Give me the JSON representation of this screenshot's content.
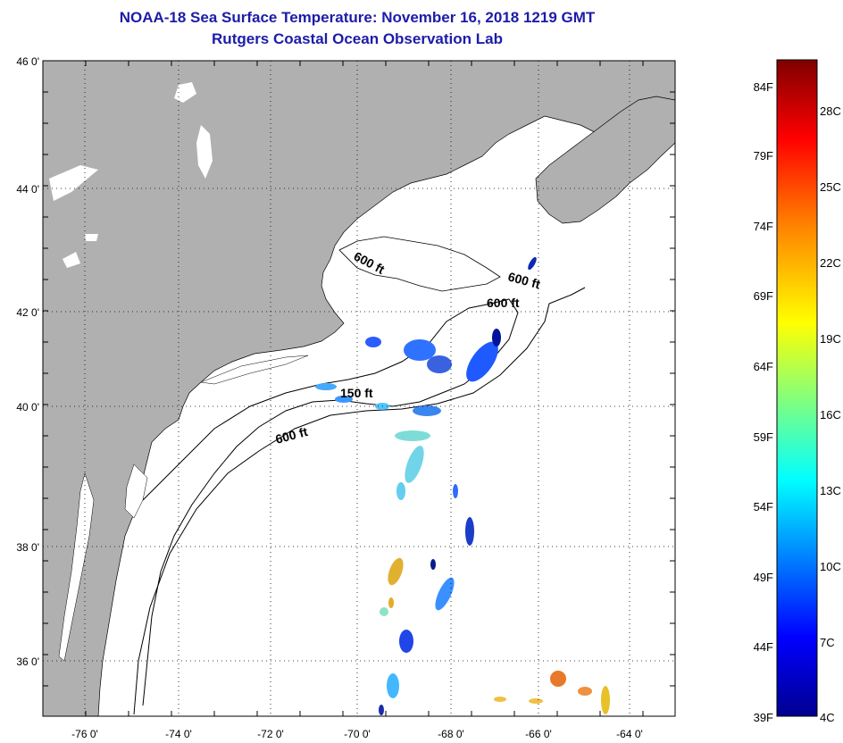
{
  "header": {
    "title": "NOAA-18 Sea Surface Temperature:  November 16, 2018 1219 GMT",
    "subtitle": "Rutgers Coastal Ocean Observation Lab"
  },
  "map": {
    "lat_labels": [
      "46 0'",
      "44 0'",
      "42 0'",
      "40 0'",
      "38 0'",
      "36 0'"
    ],
    "lon_labels": [
      "-76 0'",
      "-74 0'",
      "-72 0'",
      "-70 0'",
      "-68 0'",
      "-66 0'",
      "-64 0'"
    ],
    "contour_labels": [
      "600 ft",
      "600 ft",
      "600 ft",
      "150 ft",
      "600 ft"
    ],
    "land_color": "#b0b0b0",
    "ocean_color": "#ffffff"
  },
  "colorbar": {
    "f_labels": [
      "84F",
      "79F",
      "74F",
      "69F",
      "64F",
      "59F",
      "54F",
      "49F",
      "44F",
      "39F"
    ],
    "c_labels": [
      "28C",
      "25C",
      "22C",
      "19C",
      "16C",
      "13C",
      "10C",
      "7C",
      "4C"
    ],
    "colors": [
      "#7f0000",
      "#ff0000",
      "#ff8000",
      "#ffff00",
      "#80ff80",
      "#00ffff",
      "#0080ff",
      "#0000ff",
      "#00008f"
    ]
  }
}
